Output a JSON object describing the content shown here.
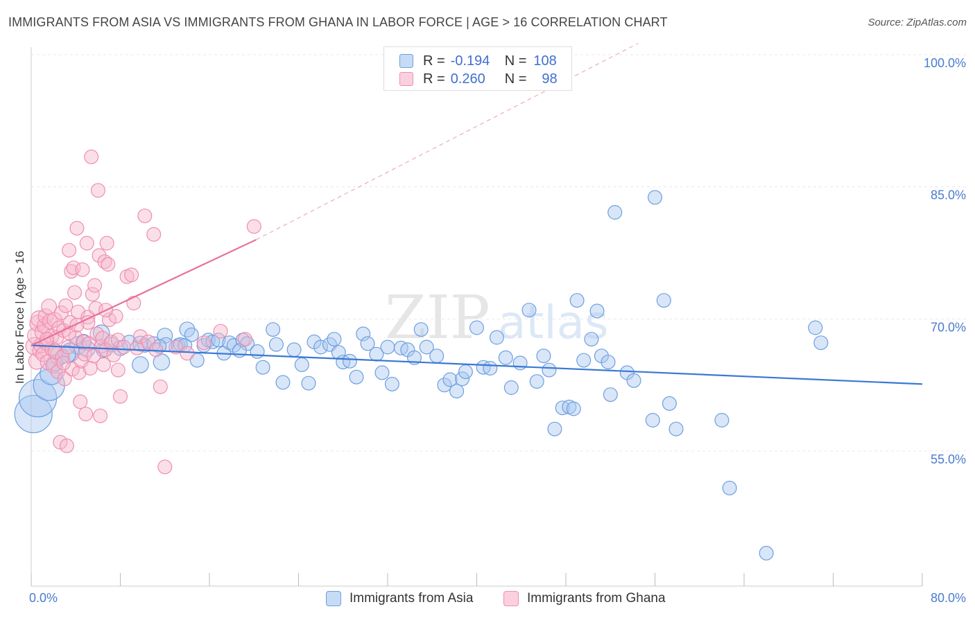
{
  "header": {
    "title": "IMMIGRANTS FROM ASIA VS IMMIGRANTS FROM GHANA IN LABOR FORCE | AGE > 16 CORRELATION CHART",
    "source": "Source: ZipAtlas.com"
  },
  "legend": {
    "r_label": "R =",
    "n_label": "N =",
    "asia": {
      "r": "-0.194",
      "n": "108"
    },
    "ghana": {
      "r": "0.260",
      "n": "98"
    }
  },
  "watermark": {
    "zip": "ZIP",
    "atlas": "atlas"
  },
  "colors": {
    "asia_fill": "#a9c8f0",
    "asia_stroke": "#6d9ee0",
    "asia_line": "#3a78d4",
    "ghana_fill": "#f6b7cb",
    "ghana_stroke": "#ee8eae",
    "ghana_line": "#e8709a",
    "label_blue": "#4a7bd0"
  },
  "chart_data": {
    "type": "scatter",
    "title": "IMMIGRANTS FROM ASIA VS IMMIGRANTS FROM GHANA IN LABOR FORCE | AGE > 16 CORRELATION CHART",
    "xlabel": "",
    "ylabel": "In Labor Force | Age > 16",
    "xlim": [
      0,
      80
    ],
    "ylim": [
      40,
      102
    ],
    "x_tick_labels": [
      "0.0%",
      "80.0%"
    ],
    "y_ticks": [
      55,
      70,
      85,
      100
    ],
    "y_tick_labels": [
      "55.0%",
      "70.0%",
      "85.0%",
      "100.0%"
    ],
    "legend": [
      "Immigrants from Asia",
      "Immigrants from Ghana"
    ],
    "series": [
      {
        "name": "Immigrants from Asia",
        "trend": {
          "x": [
            0,
            80
          ],
          "y": [
            67.0,
            62.6
          ]
        },
        "points": [
          [
            0.2,
            59.2,
            3
          ],
          [
            0.6,
            61.0,
            3
          ],
          [
            1.6,
            62.5,
            2.5
          ],
          [
            1.8,
            63.8,
            1.8
          ],
          [
            2.5,
            65.8,
            1.5
          ],
          [
            3.5,
            66.2,
            1.5
          ],
          [
            4.2,
            67.0,
            1.4
          ],
          [
            5.0,
            66.6,
            1.3
          ],
          [
            6.3,
            68.4,
            1.3
          ],
          [
            7.2,
            67.1,
            1.2
          ],
          [
            8.0,
            66.7,
            1.2
          ],
          [
            8.8,
            67.3,
            1.2
          ],
          [
            9.8,
            67.2,
            1.2
          ],
          [
            10.2,
            67.0,
            1.1
          ],
          [
            11.0,
            67.2,
            1.1
          ],
          [
            11.7,
            65.1,
            1.3
          ],
          [
            12.0,
            68.1,
            1.2
          ],
          [
            12.1,
            67.1,
            1.1
          ],
          [
            13.2,
            67.0,
            1.1
          ],
          [
            13.4,
            67.1,
            1.1
          ],
          [
            13.8,
            67.0,
            1.1
          ],
          [
            14.0,
            68.8,
            1.2
          ],
          [
            14.4,
            68.2,
            1.1
          ],
          [
            14.9,
            65.3,
            1.1
          ],
          [
            15.5,
            67.0,
            1.1
          ],
          [
            15.9,
            67.6,
            1.1
          ],
          [
            16.3,
            67.4,
            1.1
          ],
          [
            16.8,
            67.6,
            1.1
          ],
          [
            17.3,
            66.1,
            1.1
          ],
          [
            17.8,
            67.3,
            1.1
          ],
          [
            18.2,
            67.0,
            1.1
          ],
          [
            19.0,
            67.6,
            1.1
          ],
          [
            19.4,
            67.2,
            1.1
          ],
          [
            20.3,
            66.3,
            1.1
          ],
          [
            20.8,
            64.5,
            1.1
          ],
          [
            21.7,
            68.8,
            1.1
          ],
          [
            22.0,
            67.1,
            1.1
          ],
          [
            22.6,
            62.8,
            1.1
          ],
          [
            23.6,
            66.5,
            1.1
          ],
          [
            24.3,
            64.8,
            1.1
          ],
          [
            24.9,
            62.7,
            1.1
          ],
          [
            25.4,
            67.4,
            1.1
          ],
          [
            26.0,
            66.8,
            1.1
          ],
          [
            26.8,
            67.1,
            1.1
          ],
          [
            27.2,
            67.7,
            1.1
          ],
          [
            27.6,
            66.2,
            1.1
          ],
          [
            28.0,
            65.1,
            1.1
          ],
          [
            28.6,
            65.2,
            1.1
          ],
          [
            29.2,
            63.4,
            1.1
          ],
          [
            29.8,
            68.3,
            1.1
          ],
          [
            30.2,
            67.2,
            1.1
          ],
          [
            31.0,
            66.0,
            1.1
          ],
          [
            31.5,
            63.9,
            1.1
          ],
          [
            32.0,
            66.8,
            1.1
          ],
          [
            32.4,
            62.6,
            1.1
          ],
          [
            33.2,
            66.7,
            1.1
          ],
          [
            33.8,
            66.5,
            1.1
          ],
          [
            34.4,
            65.6,
            1.1
          ],
          [
            35.0,
            68.8,
            1.1
          ],
          [
            35.5,
            66.8,
            1.1
          ],
          [
            36.4,
            65.8,
            1.1
          ],
          [
            37.1,
            62.5,
            1.1
          ],
          [
            37.6,
            63.1,
            1.1
          ],
          [
            38.2,
            61.8,
            1.1
          ],
          [
            38.7,
            63.2,
            1.1
          ],
          [
            39.0,
            64.0,
            1.1
          ],
          [
            40.0,
            69.0,
            1.1
          ],
          [
            40.6,
            64.5,
            1.1
          ],
          [
            41.2,
            64.4,
            1.1
          ],
          [
            41.8,
            67.9,
            1.1
          ],
          [
            42.6,
            65.6,
            1.1
          ],
          [
            43.1,
            62.2,
            1.1
          ],
          [
            43.9,
            65.0,
            1.1
          ],
          [
            44.7,
            71.0,
            1.1
          ],
          [
            45.4,
            62.9,
            1.1
          ],
          [
            46.0,
            65.8,
            1.1
          ],
          [
            46.5,
            64.2,
            1.1
          ],
          [
            47.0,
            57.5,
            1.1
          ],
          [
            47.7,
            59.9,
            1.1
          ],
          [
            48.3,
            60.0,
            1.1
          ],
          [
            48.7,
            59.8,
            1.1
          ],
          [
            49.0,
            72.1,
            1.1
          ],
          [
            49.6,
            65.3,
            1.1
          ],
          [
            50.3,
            67.7,
            1.1
          ],
          [
            50.8,
            70.9,
            1.1
          ],
          [
            51.2,
            65.8,
            1.1
          ],
          [
            51.8,
            65.1,
            1.1
          ],
          [
            52.0,
            61.4,
            1.1
          ],
          [
            52.4,
            82.1,
            1.1
          ],
          [
            53.5,
            63.9,
            1.1
          ],
          [
            54.1,
            63.0,
            1.1
          ],
          [
            55.8,
            58.5,
            1.1
          ],
          [
            56.0,
            83.8,
            1.1
          ],
          [
            56.8,
            72.1,
            1.1
          ],
          [
            57.3,
            60.4,
            1.1
          ],
          [
            57.9,
            57.5,
            1.1
          ],
          [
            62.0,
            58.5,
            1.1
          ],
          [
            62.7,
            50.8,
            1.1
          ],
          [
            66.0,
            43.4,
            1.1
          ],
          [
            70.4,
            69.0,
            1.1
          ],
          [
            70.9,
            67.3,
            1.1
          ],
          [
            9.8,
            64.8,
            1.3
          ],
          [
            6.5,
            66.5,
            1.2
          ],
          [
            3.2,
            66.0,
            1.4
          ],
          [
            2.1,
            65.0,
            1.3
          ],
          [
            4.7,
            67.4,
            1.2
          ],
          [
            11.5,
            66.9,
            1.1
          ],
          [
            18.7,
            66.4,
            1.1
          ]
        ]
      },
      {
        "name": "Immigrants from Ghana",
        "trend": {
          "x": [
            0,
            20.2
          ],
          "y": [
            67.0,
            79.0
          ]
        },
        "trend_extension": {
          "x": [
            20.2,
            54.5
          ],
          "y": [
            79.0,
            101.3
          ]
        },
        "points": [
          [
            0.3,
            66.9,
            1.4
          ],
          [
            0.4,
            68.1,
            1.3
          ],
          [
            0.5,
            65.2,
            1.3
          ],
          [
            0.6,
            69.5,
            1.3
          ],
          [
            0.7,
            70.0,
            1.3
          ],
          [
            0.8,
            66.4,
            1.2
          ],
          [
            0.9,
            67.0,
            1.2
          ],
          [
            1.0,
            68.5,
            1.2
          ],
          [
            1.1,
            66.0,
            1.2
          ],
          [
            1.2,
            69.2,
            1.2
          ],
          [
            1.3,
            70.3,
            1.2
          ],
          [
            1.4,
            67.3,
            1.2
          ],
          [
            1.5,
            65.1,
            1.2
          ],
          [
            1.6,
            71.4,
            1.2
          ],
          [
            1.7,
            69.7,
            1.2
          ],
          [
            1.8,
            68.0,
            1.2
          ],
          [
            1.9,
            66.6,
            1.2
          ],
          [
            2.0,
            64.7,
            1.2
          ],
          [
            2.1,
            69.9,
            1.2
          ],
          [
            2.2,
            66.3,
            1.2
          ],
          [
            2.3,
            67.9,
            1.1
          ],
          [
            2.4,
            64.0,
            1.1
          ],
          [
            2.5,
            69.0,
            1.1
          ],
          [
            2.6,
            56.0,
            1.1
          ],
          [
            2.7,
            70.7,
            1.1
          ],
          [
            2.8,
            65.7,
            1.1
          ],
          [
            2.9,
            68.7,
            1.1
          ],
          [
            3.0,
            63.2,
            1.1
          ],
          [
            3.1,
            71.5,
            1.1
          ],
          [
            3.2,
            55.6,
            1.1
          ],
          [
            3.3,
            66.8,
            1.1
          ],
          [
            3.4,
            77.8,
            1.1
          ],
          [
            3.5,
            69.6,
            1.1
          ],
          [
            3.6,
            75.4,
            1.1
          ],
          [
            3.7,
            64.3,
            1.1
          ],
          [
            3.8,
            75.8,
            1.1
          ],
          [
            3.9,
            73.0,
            1.1
          ],
          [
            4.0,
            67.9,
            1.1
          ],
          [
            4.1,
            80.3,
            1.1
          ],
          [
            4.2,
            70.8,
            1.1
          ],
          [
            4.3,
            63.9,
            1.1
          ],
          [
            4.4,
            60.6,
            1.1
          ],
          [
            4.5,
            65.2,
            1.1
          ],
          [
            4.6,
            75.6,
            1.1
          ],
          [
            4.7,
            67.4,
            1.1
          ],
          [
            4.8,
            66.0,
            1.1
          ],
          [
            4.9,
            59.2,
            1.1
          ],
          [
            5.0,
            78.6,
            1.1
          ],
          [
            5.1,
            70.2,
            1.1
          ],
          [
            5.2,
            67.2,
            1.1
          ],
          [
            5.3,
            64.4,
            1.1
          ],
          [
            5.4,
            88.4,
            1.1
          ],
          [
            5.5,
            72.8,
            1.1
          ],
          [
            5.6,
            65.8,
            1.1
          ],
          [
            5.7,
            73.8,
            1.1
          ],
          [
            5.8,
            71.2,
            1.1
          ],
          [
            5.9,
            68.3,
            1.1
          ],
          [
            6.0,
            84.6,
            1.1
          ],
          [
            6.1,
            77.2,
            1.1
          ],
          [
            6.2,
            59.0,
            1.1
          ],
          [
            6.3,
            66.9,
            1.1
          ],
          [
            6.4,
            67.8,
            1.1
          ],
          [
            6.5,
            64.8,
            1.1
          ],
          [
            6.6,
            76.5,
            1.1
          ],
          [
            6.7,
            66.5,
            1.1
          ],
          [
            6.8,
            78.6,
            1.1
          ],
          [
            6.9,
            76.2,
            1.1
          ],
          [
            7.0,
            69.9,
            1.1
          ],
          [
            7.2,
            67.4,
            1.1
          ],
          [
            7.4,
            65.9,
            1.1
          ],
          [
            7.6,
            70.3,
            1.1
          ],
          [
            7.8,
            67.6,
            1.1
          ],
          [
            8.0,
            61.2,
            1.1
          ],
          [
            8.3,
            66.8,
            1.1
          ],
          [
            8.6,
            74.8,
            1.1
          ],
          [
            9.0,
            75.0,
            1.1
          ],
          [
            9.2,
            71.8,
            1.1
          ],
          [
            9.5,
            66.7,
            1.1
          ],
          [
            9.8,
            68.0,
            1.1
          ],
          [
            10.2,
            81.7,
            1.1
          ],
          [
            10.5,
            67.4,
            1.1
          ],
          [
            11.0,
            79.6,
            1.1
          ],
          [
            11.2,
            66.5,
            1.1
          ],
          [
            11.6,
            62.3,
            1.1
          ],
          [
            12.0,
            53.2,
            1.1
          ],
          [
            13.0,
            66.8,
            1.1
          ],
          [
            14.0,
            66.1,
            1.1
          ],
          [
            15.5,
            67.3,
            1.1
          ],
          [
            17.0,
            68.6,
            1.1
          ],
          [
            19.2,
            67.7,
            1.1
          ],
          [
            20.0,
            80.5,
            1.1
          ],
          [
            5.1,
            69.6,
            1.1
          ],
          [
            3.4,
            68.4,
            1.1
          ],
          [
            2.9,
            65.0,
            1.1
          ],
          [
            1.4,
            67.7,
            1.1
          ],
          [
            4.1,
            69.3,
            1.1
          ],
          [
            6.7,
            71.0,
            1.1
          ],
          [
            7.8,
            64.2,
            1.1
          ]
        ]
      }
    ]
  }
}
